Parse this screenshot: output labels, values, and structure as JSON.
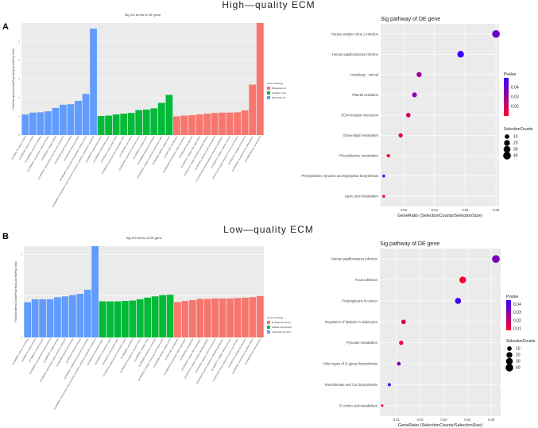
{
  "header_top": "High—quality  ECM",
  "header_bottom": "Low—quality  ECM",
  "panel_a": "A",
  "panel_b": "B",
  "chart_data": [
    {
      "type": "bar",
      "title": "Sig GO terms of DE gene",
      "ylabel": "Fold Enrichment (Count/Pop.Hits)/(List.Hits/Pop.Total)",
      "ylim": [
        0,
        6
      ],
      "yticks": [
        0,
        1,
        2,
        3,
        4,
        5
      ],
      "legend_title": "Gene Ontology",
      "legend": [
        {
          "name": "Biological pro",
          "color": "#f8766d"
        },
        {
          "name": "Cellular comp",
          "color": "#00ba38"
        },
        {
          "name": "Molecular fun",
          "color": "#619cff"
        }
      ],
      "series": [
        {
          "name": "Molecular fun",
          "color": "#619cff",
          "categories": [
            "GO:0005178~integrin binding",
            "GO:0008201~heparin binding",
            "GO:0005509~calcium ion binding",
            "GO:0050839~cell adhesion molecule binding",
            "GO:0005518~collagen binding",
            "GO:0005201~extracellular matrix structural constituent",
            "GO:0019838~growth factor binding",
            "GO:0002020~protease binding",
            "GO:0004867~serine-type endopeptidase inhibitor activity",
            "GO:0030021~extracellular matrix structural constituent conferring compression resistance"
          ],
          "values": [
            1.1,
            1.2,
            1.22,
            1.27,
            1.45,
            1.62,
            1.65,
            1.83,
            2.2,
            5.7
          ]
        },
        {
          "name": "Cellular comp",
          "color": "#00ba38",
          "categories": [
            "GO:0005576~extracellular region",
            "GO:0005615~extracellular space",
            "GO:0031012~extracellular matrix",
            "GO:0005578~proteinaceous extracellular matrix",
            "GO:0009986~cell surface",
            "GO:0005788~endoplasmic reticulum lumen",
            "GO:0005581~collagen trimer",
            "GO:0005604~basement membrane",
            "GO:0062023~collagen-containing extracellular matrix",
            "GO:0005583~fibrillar collagen trimer"
          ],
          "values": [
            1.02,
            1.04,
            1.1,
            1.14,
            1.18,
            1.33,
            1.36,
            1.43,
            1.72,
            2.15
          ]
        },
        {
          "name": "Biological pro",
          "color": "#f8766d",
          "categories": [
            "GO:0007155~cell adhesion",
            "GO:0030198~extracellular matrix organization",
            "GO:0001525~angiogenesis",
            "GO:0030199~collagen fibril organization",
            "GO:0007229~integrin-mediated signaling pathway",
            "GO:0001501~skeletal system development",
            "GO:0048146~positive regulation of fibroblast proliferation",
            "GO:0030574~collagen catabolic process",
            "GO:0071230~cellular response to amino acid stimulus",
            "GO:0051216~cartilage development",
            "GO:0035987~endodermal cell differentiation",
            "GO:0060348~bone development"
          ],
          "values": [
            1.0,
            1.04,
            1.06,
            1.1,
            1.14,
            1.18,
            1.2,
            1.2,
            1.22,
            1.32,
            2.7,
            6.0
          ]
        }
      ]
    },
    {
      "type": "scatter",
      "title": "Sig pathway of DE gene",
      "xlabel": "GeneRatio (SelectionCounts/SelectionSize)",
      "xlim": [
        0.005,
        0.082
      ],
      "xticks": [
        0.02,
        0.04,
        0.06,
        0.08
      ],
      "xtick_labels": [
        "0.02",
        "0.04",
        "0.06",
        "0.08"
      ],
      "categories": [
        "Herpes simplex virus 1 infection",
        "Human papillomavirus infection",
        "Autophagy - animal",
        "Platelet activation",
        "ECM-receptor interaction",
        "Glycerolipid metabolism",
        "Phenylalanine metabolism",
        "Phenylalanine, tyrosine and tryptophan biosynthesis",
        "Lipoic acid metabolism"
      ],
      "x": [
        0.08,
        0.057,
        0.03,
        0.027,
        0.023,
        0.018,
        0.01,
        0.007,
        0.007
      ],
      "counts": [
        40,
        28,
        14,
        12,
        10,
        8,
        4,
        2,
        2
      ],
      "pvalue": [
        0.04,
        0.052,
        0.03,
        0.035,
        0.02,
        0.015,
        0.01,
        0.05,
        0.01
      ],
      "colorbar_title": "Pvalue",
      "colorbar_ticks": [
        "0.04",
        "0.03",
        "0.02"
      ],
      "colorbar_tick_values": [
        0.04,
        0.03,
        0.02
      ],
      "colorbar_range": [
        0.01,
        0.05
      ],
      "size_title": "SelectionCounts",
      "size_ticks": [
        10,
        20,
        30,
        40
      ]
    },
    {
      "type": "bar",
      "title": "Sig GO terms of DE gene",
      "ylabel": "Fold Enrichment (Count/Pop.Hits)/(List.Hits/Pop.Total)",
      "ylim": [
        0,
        2.2
      ],
      "yticks": [
        0,
        1,
        2
      ],
      "legend_title": "Gene Ontology",
      "legend": [
        {
          "name": "biological process",
          "color": "#f8766d"
        },
        {
          "name": "cellular component",
          "color": "#00ba38"
        },
        {
          "name": "molecular function",
          "color": "#619cff"
        }
      ],
      "series": [
        {
          "name": "molecular function",
          "color": "#619cff",
          "categories": [
            "GO:0005509~calcium ion binding",
            "GO:0005178~integrin binding",
            "GO:0008201~heparin binding",
            "GO:0050839~cell adhesion molecule binding",
            "GO:0005518~collagen binding",
            "GO:0005201~extracellular matrix structural constituent",
            "GO:0019838~growth factor binding",
            "GO:0002020~protease binding",
            "GO:0048407~platelet-derived growth factor binding",
            "GO:0030021~extracellular matrix structural constituent conferring compression resistance"
          ],
          "values": [
            0.85,
            0.92,
            0.92,
            0.92,
            0.97,
            0.99,
            1.02,
            1.05,
            1.15,
            2.2
          ]
        },
        {
          "name": "cellular component",
          "color": "#00ba38",
          "categories": [
            "GO:0005576~extracellular region",
            "GO:0005615~extracellular space",
            "GO:0031012~extracellular matrix",
            "GO:0005578~proteinaceous extracellular matrix",
            "GO:0009986~cell surface",
            "GO:0005788~endoplasmic reticulum lumen",
            "GO:0005581~collagen trimer",
            "GO:0005604~basement membrane",
            "GO:0062023~collagen-containing extracellular matrix",
            "GO:0005583~fibrillar collagen trimer"
          ],
          "values": [
            0.87,
            0.87,
            0.87,
            0.88,
            0.89,
            0.92,
            0.96,
            0.99,
            1.02,
            1.03
          ]
        },
        {
          "name": "biological process",
          "color": "#f8766d",
          "categories": [
            "GO:0007155~cell adhesion",
            "GO:0030198~extracellular matrix organization",
            "GO:0001525~angiogenesis",
            "GO:0030199~collagen fibril organization",
            "GO:0007229~integrin-mediated signaling pathway",
            "GO:0001501~skeletal system development",
            "GO:0048146~positive regulation of fibroblast proliferation",
            "GO:0030574~collagen catabolic process",
            "GO:0071230~cellular response to amino acid stimulus",
            "GO:0051216~cartilage development",
            "GO:0035987~endodermal cell differentiation",
            "GO:0060348~bone development"
          ],
          "values": [
            0.85,
            0.88,
            0.9,
            0.93,
            0.93,
            0.94,
            0.94,
            0.94,
            0.95,
            0.96,
            0.97,
            1.0
          ]
        }
      ]
    },
    {
      "type": "scatter",
      "title": "Sig pathway of DE gene",
      "xlabel": "GeneRatio (SelectionCounts/SelectionSize)",
      "xlim": [
        0.003,
        0.054
      ],
      "xticks": [
        0.01,
        0.02,
        0.03,
        0.04,
        0.05
      ],
      "xtick_labels": [
        "0.01",
        "0.02",
        "0.03",
        "0.04",
        "0.05"
      ],
      "categories": [
        "Human papillomavirus infection",
        "Focal adhesion",
        "Proteoglycans in cancer",
        "Regulation of lipolysis in adipocytes",
        "Pyruvate metabolism",
        "Other types of O-glycan biosynthesis",
        "Pantothenate and CoA biosynthesis",
        "D-Amino acid metabolism"
      ],
      "x": [
        0.052,
        0.038,
        0.036,
        0.013,
        0.012,
        0.011,
        0.007,
        0.004
      ],
      "counts": [
        40,
        28,
        22,
        10,
        8,
        6,
        3,
        1
      ],
      "pvalue": [
        0.034,
        0.01,
        0.043,
        0.015,
        0.012,
        0.03,
        0.042,
        0.01
      ],
      "colorbar_title": "Pvalue",
      "colorbar_ticks": [
        "0.04",
        "0.03",
        "0.02",
        "0.01"
      ],
      "colorbar_tick_values": [
        0.04,
        0.03,
        0.02,
        0.01
      ],
      "colorbar_range": [
        0.008,
        0.045
      ],
      "size_title": "SelectionCounts",
      "size_ticks": [
        10,
        20,
        30,
        40
      ]
    }
  ]
}
